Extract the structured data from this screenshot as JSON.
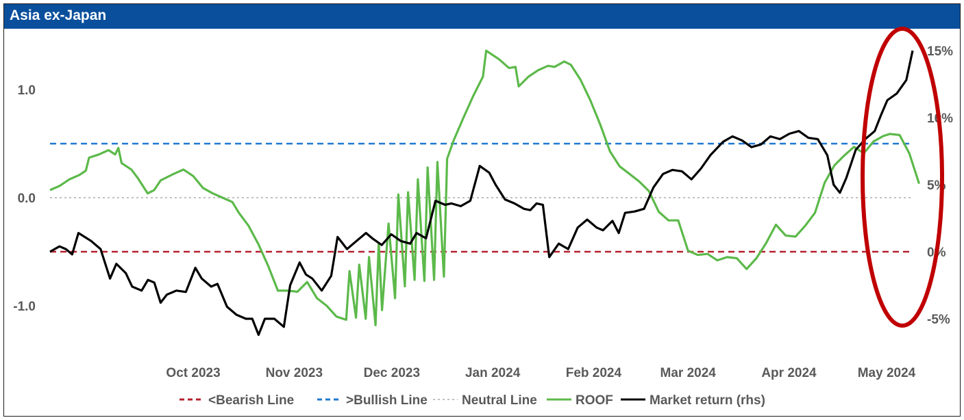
{
  "header": {
    "title": "Asia ex-Japan"
  },
  "colors": {
    "header_bg": "#0a4f9c",
    "bearish": "#b5202e",
    "bullish": "#1f78d1",
    "neutral": "#c0c0c0",
    "roof": "#5cb94a",
    "market": "#000000",
    "highlight": "#c00000"
  },
  "chart_data": {
    "type": "line",
    "title": "Asia ex-Japan",
    "x_ticks": [
      "Oct 2023",
      "Nov 2023",
      "Dec 2023",
      "Jan 2024",
      "Feb 2024",
      "Mar 2024",
      "Apr 2024",
      "May 2024"
    ],
    "x_range": [
      "2023-09-01",
      "2024-05-23"
    ],
    "y_left": {
      "ticks": [
        "1.0",
        "0.0",
        "-1.0"
      ],
      "tick_values": [
        1.0,
        0.0,
        -1.0
      ],
      "range": [
        -1.5,
        1.45
      ]
    },
    "y_right": {
      "ticks": [
        "15%",
        "10%",
        "5%",
        "0%",
        "-5%"
      ],
      "tick_values": [
        15,
        10,
        5,
        0,
        -5
      ],
      "range": [
        -9.4,
        16.1
      ]
    },
    "reference_lines": [
      {
        "name": "<Bearish Line",
        "value": -0.5,
        "style": "dashed"
      },
      {
        "name": ">Bullish Line",
        "value": 0.5,
        "style": "dashed"
      },
      {
        "name": "Neutral Line",
        "value": 0.0,
        "style": "dotted"
      }
    ],
    "series": [
      {
        "name": "ROOF",
        "axis": "left",
        "points": [
          [
            "2023-09-01",
            0.07
          ],
          [
            "2023-09-04",
            0.11
          ],
          [
            "2023-09-07",
            0.17
          ],
          [
            "2023-09-10",
            0.21
          ],
          [
            "2023-09-12",
            0.25
          ],
          [
            "2023-09-13",
            0.37
          ],
          [
            "2023-09-16",
            0.4
          ],
          [
            "2023-09-19",
            0.44
          ],
          [
            "2023-09-21",
            0.4
          ],
          [
            "2023-09-22",
            0.46
          ],
          [
            "2023-09-23",
            0.32
          ],
          [
            "2023-09-26",
            0.26
          ],
          [
            "2023-09-28",
            0.18
          ],
          [
            "2023-10-01",
            0.04
          ],
          [
            "2023-10-03",
            0.07
          ],
          [
            "2023-10-05",
            0.16
          ],
          [
            "2023-10-09",
            0.22
          ],
          [
            "2023-10-12",
            0.26
          ],
          [
            "2023-10-15",
            0.2
          ],
          [
            "2023-10-18",
            0.09
          ],
          [
            "2023-10-21",
            0.04
          ],
          [
            "2023-10-24",
            0.0
          ],
          [
            "2023-10-27",
            -0.04
          ],
          [
            "2023-10-29",
            -0.14
          ],
          [
            "2023-11-01",
            -0.26
          ],
          [
            "2023-11-04",
            -0.43
          ],
          [
            "2023-11-07",
            -0.63
          ],
          [
            "2023-11-10",
            -0.86
          ],
          [
            "2023-11-13",
            -0.86
          ],
          [
            "2023-11-16",
            -0.87
          ],
          [
            "2023-11-19",
            -0.78
          ],
          [
            "2023-11-22",
            -0.93
          ],
          [
            "2023-11-25",
            -1.0
          ],
          [
            "2023-11-28",
            -1.1
          ],
          [
            "2023-12-01",
            -1.13
          ],
          [
            "2023-12-04",
            -1.11
          ],
          [
            "2023-12-07",
            -1.12
          ],
          [
            "2023-12-10",
            -1.18
          ],
          [
            "2023-12-12",
            -1.04
          ],
          [
            "2023-12-16",
            -0.93
          ],
          [
            "2023-12-19",
            -0.82
          ],
          [
            "2023-12-22",
            -0.76
          ],
          [
            "2023-12-25",
            -0.77
          ],
          [
            "2023-12-28",
            -0.76
          ],
          [
            "2023-12-31",
            -0.73
          ],
          [
            "2023-12-02",
            -0.68
          ],
          [
            "2023-12-05",
            -0.62
          ],
          [
            "2023-12-08",
            -0.55
          ],
          [
            "2023-12-11",
            -0.42
          ],
          [
            "2023-12-14",
            -0.24
          ],
          [
            "2023-12-17",
            0.03
          ],
          [
            "2023-12-20",
            0.05
          ],
          [
            "2023-12-23",
            0.17
          ],
          [
            "2023-12-26",
            0.28
          ],
          [
            "2023-12-29",
            0.33
          ],
          [
            "2024-01-01",
            0.36
          ],
          [
            "2024-01-03",
            0.53
          ],
          [
            "2024-01-06",
            0.74
          ],
          [
            "2024-01-09",
            0.94
          ],
          [
            "2024-01-12",
            1.12
          ],
          [
            "2024-01-13",
            1.36
          ],
          [
            "2024-01-17",
            1.28
          ],
          [
            "2024-01-20",
            1.2
          ],
          [
            "2024-01-22",
            1.21
          ],
          [
            "2024-01-23",
            1.03
          ],
          [
            "2024-01-26",
            1.12
          ],
          [
            "2024-01-29",
            1.18
          ],
          [
            "2024-02-01",
            1.22
          ],
          [
            "2024-02-03",
            1.21
          ],
          [
            "2024-02-06",
            1.26
          ],
          [
            "2024-02-08",
            1.23
          ],
          [
            "2024-02-11",
            1.09
          ],
          [
            "2024-02-14",
            0.9
          ],
          [
            "2024-02-17",
            0.68
          ],
          [
            "2024-02-20",
            0.43
          ],
          [
            "2024-02-23",
            0.29
          ],
          [
            "2024-02-26",
            0.22
          ],
          [
            "2024-02-29",
            0.15
          ],
          [
            "2024-03-03",
            0.06
          ],
          [
            "2024-03-06",
            -0.13
          ],
          [
            "2024-03-09",
            -0.21
          ],
          [
            "2024-03-12",
            -0.21
          ],
          [
            "2024-03-15",
            -0.49
          ],
          [
            "2024-03-18",
            -0.53
          ],
          [
            "2024-03-21",
            -0.52
          ],
          [
            "2024-03-24",
            -0.58
          ],
          [
            "2024-03-27",
            -0.55
          ],
          [
            "2024-03-30",
            -0.56
          ],
          [
            "2024-04-02",
            -0.66
          ],
          [
            "2024-04-05",
            -0.56
          ],
          [
            "2024-04-08",
            -0.42
          ],
          [
            "2024-04-11",
            -0.25
          ],
          [
            "2024-04-14",
            -0.35
          ],
          [
            "2024-04-17",
            -0.36
          ],
          [
            "2024-04-20",
            -0.26
          ],
          [
            "2024-04-23",
            -0.14
          ],
          [
            "2024-04-26",
            0.14
          ],
          [
            "2024-04-29",
            0.3
          ],
          [
            "2024-05-02",
            0.39
          ],
          [
            "2024-05-05",
            0.47
          ],
          [
            "2024-05-08",
            0.41
          ],
          [
            "2024-05-11",
            0.52
          ],
          [
            "2024-05-14",
            0.57
          ],
          [
            "2024-05-16",
            0.59
          ],
          [
            "2024-05-19",
            0.58
          ],
          [
            "2024-05-22",
            0.41
          ],
          [
            "2024-05-25",
            0.13
          ]
        ]
      },
      {
        "name": "Market return (rhs)",
        "axis": "right",
        "points": []
      }
    ]
  },
  "legend": {
    "items": [
      {
        "label": "<Bearish Line",
        "key": "bearish",
        "style": "dashed"
      },
      {
        "label": ">Bullish Line",
        "key": "bullish",
        "style": "dashed"
      },
      {
        "label": "Neutral Line",
        "key": "neutral",
        "style": "dotted"
      },
      {
        "label": "ROOF",
        "key": "roof",
        "style": "solid"
      },
      {
        "label": "Market return (rhs)",
        "key": "market",
        "style": "solid"
      }
    ]
  }
}
